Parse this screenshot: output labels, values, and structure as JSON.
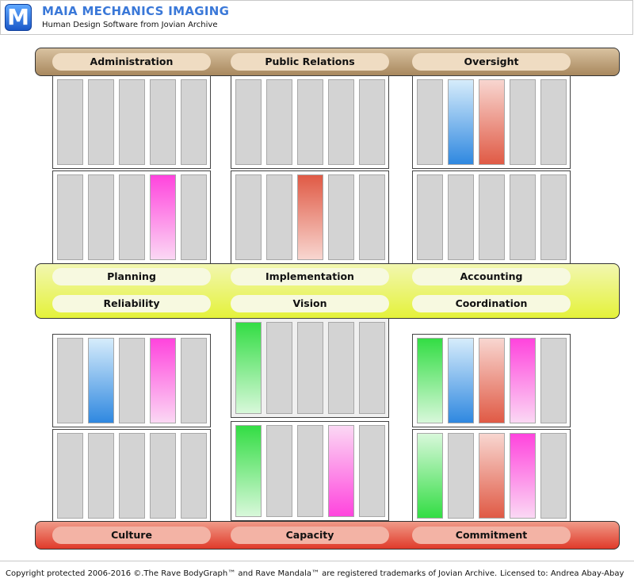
{
  "header": {
    "logo_letter": "M",
    "title": "MAIA MECHANICS IMAGING",
    "subtitle": "Human Design Software from Jovian Archive"
  },
  "bands": {
    "top": [
      "Administration",
      "Public Relations",
      "Oversight"
    ],
    "middle_row1": [
      "Planning",
      "Implementation",
      "Accounting"
    ],
    "middle_row2": [
      "Reliability",
      "Vision",
      "Coordination"
    ],
    "bottom": [
      "Culture",
      "Capacity",
      "Commitment"
    ]
  },
  "colors": {
    "top_band": "#a8885e",
    "middle_band": "#e4f23a",
    "bottom_band": "#e03a2a",
    "empty_lane": "#d3d3d3",
    "green": "#33dd44",
    "blue": "#2f88e0",
    "red": "#e05a45",
    "magenta": "#ff44dd"
  },
  "lanes": [
    {
      "block": "admin-upper",
      "fills": [
        "empty",
        "empty",
        "empty",
        "empty",
        "empty"
      ]
    },
    {
      "block": "public-upper",
      "fills": [
        "empty",
        "empty",
        "empty",
        "empty",
        "empty"
      ]
    },
    {
      "block": "oversight-upper",
      "fills": [
        "empty",
        "blue-up",
        "red-up",
        "empty",
        "empty"
      ]
    },
    {
      "block": "admin-lower",
      "fills": [
        "empty",
        "empty",
        "empty",
        "magenta-down",
        "empty"
      ]
    },
    {
      "block": "public-lower",
      "fills": [
        "empty",
        "empty",
        "red-down",
        "empty",
        "empty"
      ]
    },
    {
      "block": "oversight-lower",
      "fills": [
        "empty",
        "empty",
        "empty",
        "empty",
        "empty"
      ]
    },
    {
      "block": "culture-upper",
      "fills": [
        "empty",
        "blue-up",
        "empty",
        "magenta-down",
        "empty"
      ]
    },
    {
      "block": "capacity-upper",
      "fills": [
        "green-down",
        "empty",
        "empty",
        "empty",
        "empty"
      ]
    },
    {
      "block": "commitment-upper",
      "fills": [
        "green-down",
        "blue-up",
        "red-up",
        "magenta-down",
        "empty"
      ]
    },
    {
      "block": "culture-lower",
      "fills": [
        "empty",
        "empty",
        "empty",
        "empty",
        "empty"
      ]
    },
    {
      "block": "capacity-lower",
      "fills": [
        "green-down",
        "empty",
        "empty",
        "magenta-up",
        "empty"
      ]
    },
    {
      "block": "commitment-lower",
      "fills": [
        "green-up",
        "empty",
        "red-up",
        "magenta-down",
        "empty"
      ]
    }
  ],
  "footer": {
    "copyright": "Copyright protected 2006-2016 ©.The Rave BodyGraph™ and Rave Mandala™ are registered trademarks of Jovian Archive.",
    "licensed": "Licensed to: Andrea Abay-Abay"
  }
}
